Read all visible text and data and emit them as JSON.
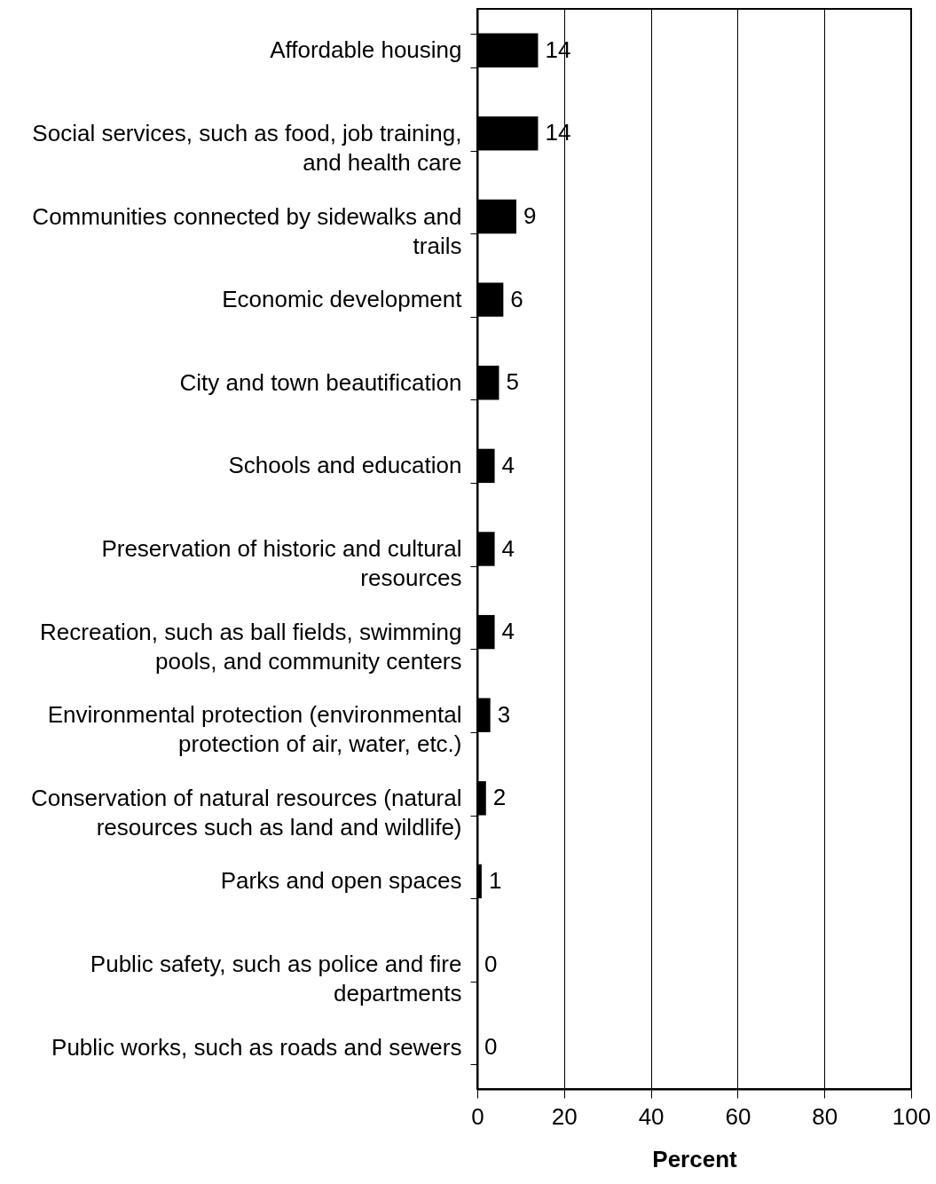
{
  "chart_data": {
    "type": "bar",
    "orientation": "horizontal",
    "xlabel": "Percent",
    "categories": [
      "Affordable housing",
      "Social services, such as food, job training, and health care",
      "Communities connected by sidewalks and trails",
      "Economic development",
      "City and town beautification",
      "Schools and education",
      "Preservation of historic and cultural resources",
      "Recreation, such as ball fields, swimming pools, and community centers",
      "Environmental protection (environmental protection of air, water, etc.)",
      "Conservation of natural resources (natural resources such as land and wildlife)",
      "Parks and open spaces",
      "Public safety, such as police and fire departments",
      "Public works, such as roads and sewers"
    ],
    "values": [
      14,
      14,
      9,
      6,
      5,
      4,
      4,
      4,
      3,
      2,
      1,
      0,
      0
    ],
    "color": "#000000",
    "xlim": [
      0,
      100
    ],
    "xticks": [
      0,
      20,
      40,
      60,
      80,
      100
    ],
    "grid": "x",
    "data_labels": true
  }
}
